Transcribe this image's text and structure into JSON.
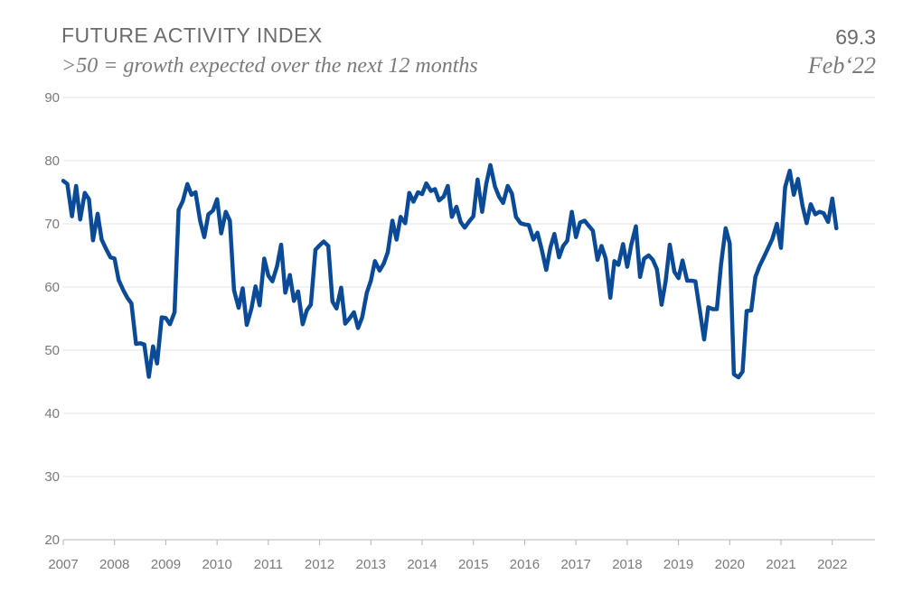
{
  "header": {
    "title": "FUTURE ACTIVITY INDEX",
    "subtitle": ">50 = growth expected over the next 12 months",
    "latest_value": "69.3",
    "latest_date": "Feb‘22"
  },
  "colors": {
    "line": "#0a4a96",
    "grid": "#e3e3e3",
    "text": "#6b6b6b"
  },
  "chart_data": {
    "type": "line",
    "title": "FUTURE ACTIVITY INDEX",
    "subtitle": ">50 = growth expected over the next 12 months",
    "xlabel": "",
    "ylabel": "",
    "ylim": [
      20,
      90
    ],
    "yticks": [
      20,
      30,
      40,
      50,
      60,
      70,
      80,
      90
    ],
    "xlim": [
      2007,
      2022.833
    ],
    "xtick_labels": [
      "2007",
      "2008",
      "2009",
      "2010",
      "2011",
      "2012",
      "2013",
      "2014",
      "2015",
      "2016",
      "2017",
      "2018",
      "2019",
      "2020",
      "2021",
      "2022"
    ],
    "grid": true,
    "legend": "none",
    "series": [
      {
        "x": [
          2007.0,
          2007.08,
          2007.17,
          2007.25,
          2007.33,
          2007.42,
          2007.5,
          2007.58,
          2007.67,
          2007.75,
          2007.83,
          2007.92,
          2008.0,
          2008.08,
          2008.17,
          2008.25,
          2008.33,
          2008.42,
          2008.5,
          2008.58,
          2008.67,
          2008.75,
          2008.83,
          2008.92,
          2009.0,
          2009.08,
          2009.17,
          2009.25,
          2009.33,
          2009.42,
          2009.5,
          2009.58,
          2009.67,
          2009.75,
          2009.83,
          2009.92,
          2010.0,
          2010.08,
          2010.17,
          2010.25,
          2010.33,
          2010.42,
          2010.5,
          2010.58,
          2010.67,
          2010.75,
          2010.83,
          2010.92,
          2011.0,
          2011.08,
          2011.17,
          2011.25,
          2011.33,
          2011.42,
          2011.5,
          2011.58,
          2011.67,
          2011.75,
          2011.83,
          2011.92,
          2012.0,
          2012.08,
          2012.17,
          2012.25,
          2012.33,
          2012.42,
          2012.5,
          2012.58,
          2012.67,
          2012.75,
          2012.83,
          2012.92,
          2013.0,
          2013.08,
          2013.17,
          2013.25,
          2013.33,
          2013.42,
          2013.5,
          2013.58,
          2013.67,
          2013.75,
          2013.83,
          2013.92,
          2014.0,
          2014.08,
          2014.17,
          2014.25,
          2014.33,
          2014.42,
          2014.5,
          2014.58,
          2014.67,
          2014.75,
          2014.83,
          2014.92,
          2015.0,
          2015.08,
          2015.17,
          2015.25,
          2015.33,
          2015.42,
          2015.5,
          2015.58,
          2015.67,
          2015.75,
          2015.83,
          2015.92,
          2016.0,
          2016.08,
          2016.17,
          2016.25,
          2016.33,
          2016.42,
          2016.5,
          2016.58,
          2016.67,
          2016.75,
          2016.83,
          2016.92,
          2017.0,
          2017.08,
          2017.17,
          2017.25,
          2017.33,
          2017.42,
          2017.5,
          2017.58,
          2017.67,
          2017.75,
          2017.83,
          2017.92,
          2018.0,
          2018.08,
          2018.17,
          2018.25,
          2018.33,
          2018.42,
          2018.5,
          2018.58,
          2018.67,
          2018.75,
          2018.83,
          2018.92,
          2019.0,
          2019.08,
          2019.17,
          2019.25,
          2019.33,
          2019.42,
          2019.5,
          2019.58,
          2019.67,
          2019.75,
          2019.83,
          2019.92,
          2020.0,
          2020.08,
          2020.17,
          2020.25,
          2020.33,
          2020.42,
          2020.5,
          2020.58,
          2020.67,
          2020.75,
          2020.83,
          2020.92,
          2021.0,
          2021.08,
          2021.17,
          2021.25,
          2021.33,
          2021.42,
          2021.5,
          2021.58,
          2021.67,
          2021.75,
          2021.83,
          2021.92,
          2022.0,
          2022.08
        ],
        "y": [
          76.8,
          76.3,
          71.2,
          76.0,
          70.7,
          74.9,
          73.9,
          67.4,
          71.6,
          67.5,
          66.1,
          64.7,
          64.5,
          61.1,
          59.5,
          58.3,
          57.4,
          51.0,
          51.1,
          50.9,
          45.8,
          50.6,
          47.9,
          55.2,
          55.1,
          54.1,
          56.0,
          72.2,
          73.6,
          76.3,
          74.6,
          75.0,
          70.5,
          67.9,
          71.5,
          72.1,
          73.9,
          68.5,
          71.9,
          70.5,
          59.5,
          56.7,
          59.8,
          54.0,
          56.6,
          60.1,
          57.1,
          64.5,
          61.8,
          60.9,
          63.3,
          66.7,
          59.1,
          61.9,
          57.8,
          59.3,
          54.1,
          56.3,
          57.2,
          65.9,
          66.6,
          67.2,
          66.5,
          57.7,
          56.6,
          59.9,
          54.2,
          55.0,
          56.0,
          53.5,
          55.2,
          59.1,
          61.0,
          64.1,
          62.6,
          63.7,
          65.5,
          70.5,
          67.5,
          71.1,
          70.1,
          74.9,
          73.5,
          75.0,
          74.7,
          76.4,
          75.2,
          75.5,
          73.7,
          74.3,
          76.0,
          71.1,
          72.7,
          70.3,
          69.4,
          70.4,
          71.2,
          77.0,
          71.9,
          76.3,
          79.3,
          75.9,
          74.3,
          73.3,
          76.0,
          74.8,
          71.1,
          70.1,
          69.9,
          69.8,
          67.5,
          68.6,
          66.0,
          62.7,
          66.2,
          68.4,
          64.7,
          66.5,
          67.3,
          71.9,
          67.9,
          70.2,
          70.5,
          69.7,
          68.9,
          64.3,
          66.5,
          64.5,
          58.3,
          64.1,
          63.5,
          66.8,
          63.2,
          66.7,
          69.6,
          61.6,
          64.5,
          65.0,
          64.3,
          62.8,
          57.2,
          60.9,
          66.7,
          62.4,
          61.4,
          64.2,
          61.0,
          61.0,
          60.9,
          56.1,
          51.7,
          56.8,
          56.5,
          56.5,
          63.6,
          69.3,
          66.9,
          46.2,
          45.7,
          46.6,
          56.2,
          56.3,
          61.6,
          63.3,
          64.8,
          66.2,
          67.6,
          70.0,
          66.2,
          75.8,
          78.4,
          74.6,
          77.1,
          72.8,
          70.1,
          73.1,
          71.5,
          71.9,
          71.7,
          70.3,
          74.0,
          69.3
        ]
      }
    ]
  }
}
